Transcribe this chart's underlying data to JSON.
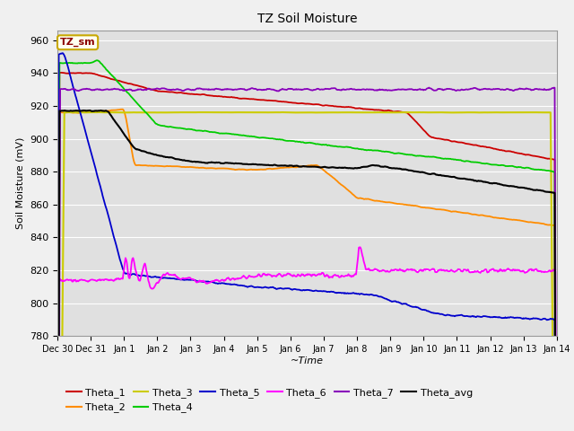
{
  "title": "TZ Soil Moisture",
  "xlabel": "~Time",
  "ylabel": "Soil Moisture (mV)",
  "ylim": [
    780,
    966
  ],
  "yticks": [
    780,
    800,
    820,
    840,
    860,
    880,
    900,
    920,
    940,
    960
  ],
  "fig_bg": "#f0f0f0",
  "plot_bg": "#e0e0e0",
  "grid_color": "#ffffff",
  "legend_label": "TZ_sm",
  "legend_box_bg": "#fffff0",
  "legend_box_edge": "#c8a800",
  "legend_text_color": "#8b0000",
  "series_colors": {
    "Theta_1": "#cc0000",
    "Theta_2": "#ff8c00",
    "Theta_3": "#cccc00",
    "Theta_4": "#00cc00",
    "Theta_5": "#0000cc",
    "Theta_6": "#ff00ff",
    "Theta_7": "#8800bb",
    "Theta_avg": "#000000"
  },
  "xtick_labels": [
    "Dec 30",
    "Dec 31",
    "Jan 1",
    "Jan 2",
    "Jan 3",
    "Jan 4",
    "Jan 5",
    "Jan 6",
    "Jan 7",
    "Jan 8",
    "Jan 9",
    "Jan 10",
    "Jan 11",
    "Jan 12",
    "Jan 13",
    "Jan 14"
  ]
}
